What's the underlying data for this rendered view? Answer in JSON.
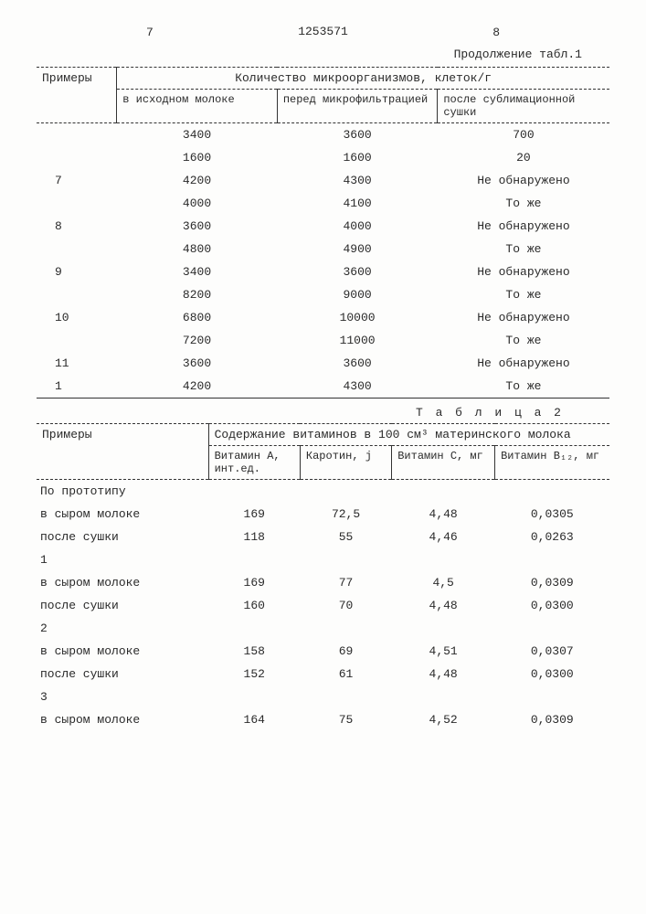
{
  "page_left": "7",
  "docnum": "1253571",
  "page_right": "8",
  "continuation": "Продолжение табл.1",
  "table1": {
    "col_examples": "Примеры",
    "group_header": "Количество микроорганизмов, клеток/г",
    "col_a": "в исходном молоке",
    "col_b": "перед микрофильтрацией",
    "col_c": "после сублимационной сушки",
    "rows": [
      {
        "ex": "",
        "a": "3400",
        "b": "3600",
        "c": "700"
      },
      {
        "ex": "",
        "a": "1600",
        "b": "1600",
        "c": "20"
      },
      {
        "ex": "7",
        "a": "4200",
        "b": "4300",
        "c": "Не обнаружено"
      },
      {
        "ex": "",
        "a": "4000",
        "b": "4100",
        "c": "То же"
      },
      {
        "ex": "8",
        "a": "3600",
        "b": "4000",
        "c": "Не обнаружено"
      },
      {
        "ex": "",
        "a": "4800",
        "b": "4900",
        "c": "То же"
      },
      {
        "ex": "9",
        "a": "3400",
        "b": "3600",
        "c": "Не обнаружено"
      },
      {
        "ex": "",
        "a": "8200",
        "b": "9000",
        "c": "То же"
      },
      {
        "ex": "10",
        "a": "6800",
        "b": "10000",
        "c": "Не обнаружено"
      },
      {
        "ex": "",
        "a": "7200",
        "b": "11000",
        "c": "То же"
      },
      {
        "ex": "11",
        "a": "3600",
        "b": "3600",
        "c": "Не обнаружено"
      },
      {
        "ex": "1",
        "a": "4200",
        "b": "4300",
        "c": "То же"
      }
    ]
  },
  "table2_label": "Т а б л и ц а 2",
  "table2": {
    "col_examples": "Примеры",
    "group_header": "Содержание витаминов в 100 см³ материнского молока",
    "col_a": "Витамин А,\nинт.ед.",
    "col_b": "Каротин,\nj",
    "col_c": "Витамин С,\nмг",
    "col_d": "Витамин В₁₂,\nмг",
    "rows": [
      {
        "label": "По прототипу",
        "indent": 0,
        "a": "",
        "b": "",
        "c": "",
        "d": ""
      },
      {
        "label": "в сыром молоке",
        "indent": 1,
        "a": "169",
        "b": "72,5",
        "c": "4,48",
        "d": "0,0305"
      },
      {
        "label": "после сушки",
        "indent": 1,
        "a": "118",
        "b": "55",
        "c": "4,46",
        "d": "0,0263"
      },
      {
        "label": "1",
        "indent": 0,
        "a": "",
        "b": "",
        "c": "",
        "d": ""
      },
      {
        "label": "в сыром молоке",
        "indent": 1,
        "a": "169",
        "b": "77",
        "c": "4,5",
        "d": "0,0309"
      },
      {
        "label": "после сушки",
        "indent": 1,
        "a": "160",
        "b": "70",
        "c": "4,48",
        "d": "0,0300"
      },
      {
        "label": "2",
        "indent": 0,
        "a": "",
        "b": "",
        "c": "",
        "d": ""
      },
      {
        "label": "в сыром молоке",
        "indent": 1,
        "a": "158",
        "b": "69",
        "c": "4,51",
        "d": "0,0307"
      },
      {
        "label": "после сушки",
        "indent": 1,
        "a": "152",
        "b": "61",
        "c": "4,48",
        "d": "0,0300"
      },
      {
        "label": "3",
        "indent": 0,
        "a": "",
        "b": "",
        "c": "",
        "d": ""
      },
      {
        "label": "в сыром молоке",
        "indent": 1,
        "a": "164",
        "b": "75",
        "c": "4,52",
        "d": "0,0309"
      }
    ]
  }
}
